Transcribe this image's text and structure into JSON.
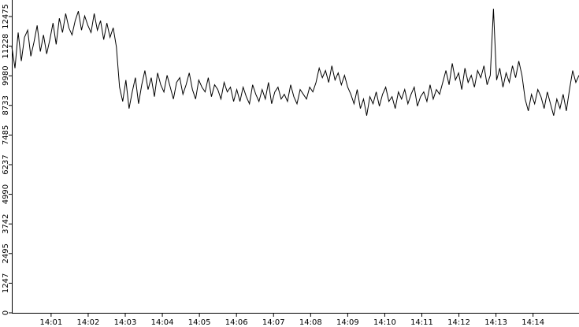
{
  "chart_data": {
    "type": "line",
    "color": "#000000",
    "values": [
      11200,
      10300,
      11800,
      10600,
      11600,
      11900,
      10800,
      11400,
      12100,
      11000,
      11700,
      10900,
      11500,
      12200,
      11300,
      12400,
      11800,
      12600,
      12000,
      11700,
      12300,
      12700,
      11900,
      12500,
      12100,
      11800,
      12600,
      11900,
      12300,
      11500,
      12200,
      11600,
      12000,
      11200,
      9500,
      8900,
      9800,
      8600,
      9300,
      9900,
      8800,
      9600,
      10200,
      9400,
      9900,
      9100,
      10100,
      9600,
      9300,
      10000,
      9500,
      9000,
      9700,
      9900,
      9200,
      9600,
      10100,
      9400,
      9000,
      9800,
      9500,
      9300,
      9900,
      9100,
      9600,
      9400,
      9000,
      9700,
      9300,
      9500,
      8900,
      9400,
      8900,
      9500,
      9100,
      8800,
      9600,
      9200,
      8900,
      9400,
      9000,
      9700,
      8800,
      9300,
      9500,
      9000,
      9200,
      8900,
      9600,
      9100,
      8800,
      9400,
      9200,
      9000,
      9500,
      9300,
      9700,
      10300,
      9900,
      10200,
      9700,
      10400,
      9800,
      10100,
      9600,
      10000,
      9500,
      9200,
      8800,
      9400,
      8600,
      9000,
      8300,
      9100,
      8800,
      9300,
      8700,
      9200,
      9500,
      8900,
      9100,
      8600,
      9300,
      9000,
      9400,
      8800,
      9200,
      9500,
      8700,
      9100,
      9300,
      8900,
      9600,
      9000,
      9400,
      9200,
      9700,
      10200,
      9600,
      10500,
      9800,
      10100,
      9400,
      10300,
      9700,
      10000,
      9500,
      10200,
      9900,
      10400,
      9600,
      10000,
      12800,
      9800,
      10300,
      9500,
      10100,
      9700,
      10400,
      9900,
      10600,
      10000,
      9000,
      8500,
      9200,
      8800,
      9400,
      9100,
      8600,
      9300,
      8800,
      8300,
      9000,
      8600,
      9200,
      8500,
      9400,
      10200,
      9700,
      10000
    ],
    "xlim": [
      0,
      179
    ],
    "xticks": [
      {
        "value": 12.4,
        "label": "14:01"
      },
      {
        "value": 24.1,
        "label": "14:02"
      },
      {
        "value": 35.8,
        "label": "14:03"
      },
      {
        "value": 47.5,
        "label": "14:04"
      },
      {
        "value": 59.2,
        "label": "14:05"
      },
      {
        "value": 70.9,
        "label": "14:06"
      },
      {
        "value": 82.6,
        "label": "14:07"
      },
      {
        "value": 94.3,
        "label": "14:08"
      },
      {
        "value": 106.0,
        "label": "14:09"
      },
      {
        "value": 117.7,
        "label": "14:10"
      },
      {
        "value": 129.4,
        "label": "14:11"
      },
      {
        "value": 141.1,
        "label": "14:12"
      },
      {
        "value": 152.8,
        "label": "14:13"
      },
      {
        "value": 164.5,
        "label": "14:14"
      }
    ],
    "ylim": [
      0,
      13170
    ],
    "yticks": [
      0,
      1247,
      2495,
      3742,
      4990,
      6237,
      7485,
      8733,
      9980,
      11228,
      12475
    ]
  }
}
